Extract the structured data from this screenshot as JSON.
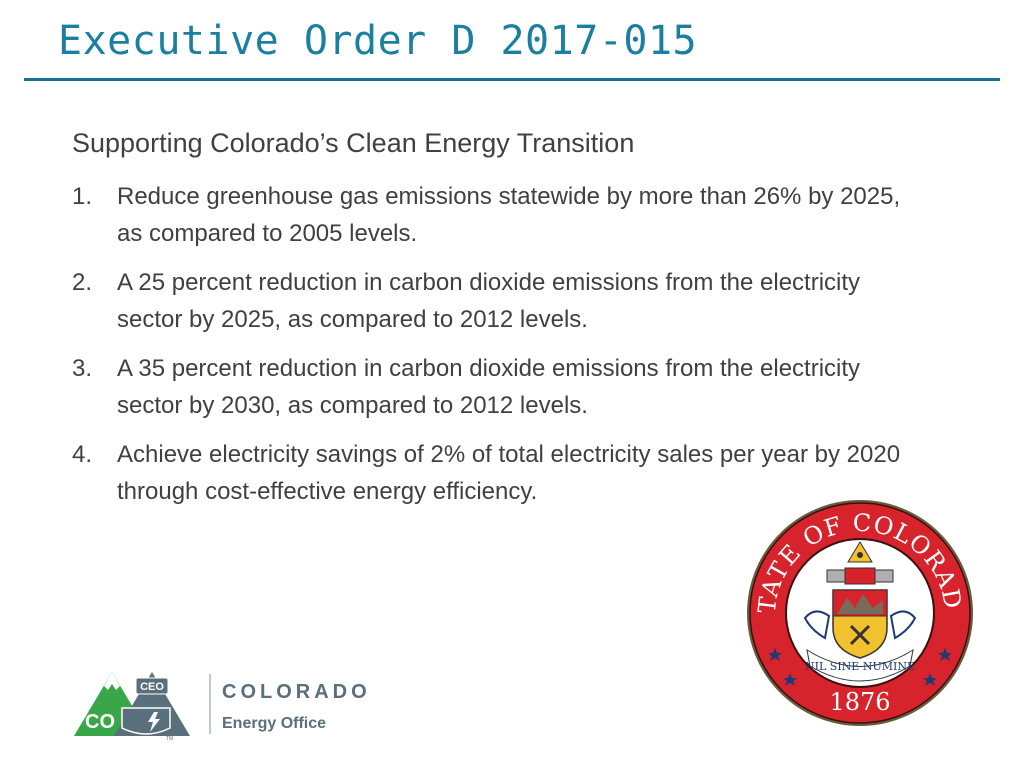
{
  "slide": {
    "title": "Executive Order D 2017-015",
    "subtitle": "Supporting Colorado’s Clean Energy Transition",
    "items": [
      {
        "number": "1.",
        "text": "Reduce greenhouse gas emissions statewide by more than 26% by 2025, as compared to 2005 levels."
      },
      {
        "number": "2.",
        "text": "A 25 percent reduction in carbon dioxide emissions from the electricity sector by 2025, as compared to 2012 levels."
      },
      {
        "number": "3.",
        "text": "A 35 percent reduction in carbon dioxide emissions from the electricity sector by 2030, as compared to 2012 levels."
      },
      {
        "number": "4.",
        "text": "Achieve electricity savings of 2% of total electricity sales per year by 2020 through cost-effective energy efficiency."
      }
    ]
  },
  "seal": {
    "ring_text": "STATE OF COLORADO",
    "motto": "NIL SINE NUMINE",
    "year": "1876"
  },
  "logo": {
    "badge_text": "CEO",
    "mark_text": "CO",
    "name": "COLORADO",
    "office": "Energy Office",
    "tm": "TM"
  },
  "colors": {
    "title": "#1a7fa0",
    "rule": "#1c6f94",
    "body_text": "#404040",
    "seal_red": "#d7232b",
    "seal_navy": "#1c3a7a",
    "seal_gold": "#f2c12e",
    "logo_green": "#3aa64a",
    "logo_slate": "#5a6f7c"
  }
}
